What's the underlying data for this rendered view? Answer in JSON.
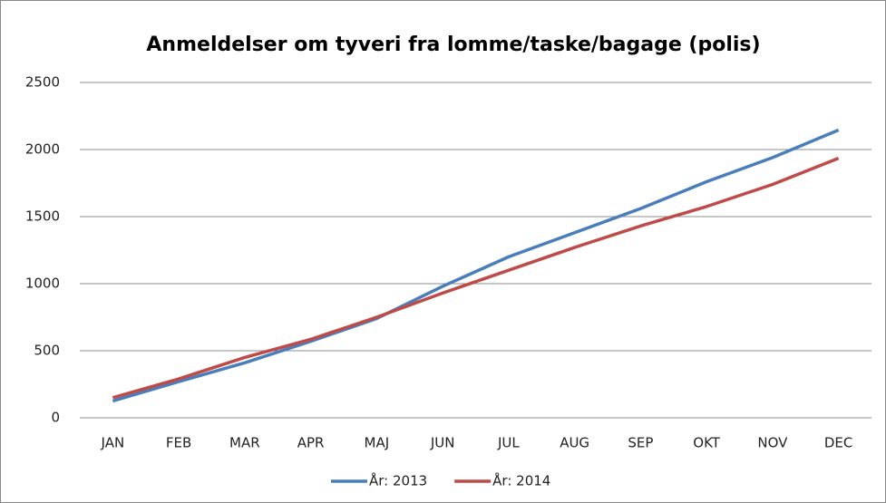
{
  "chart_data": {
    "type": "line",
    "title": "Anmeldelser om tyveri fra lomme/taske/bagage (polis)",
    "categories": [
      "JAN",
      "FEB",
      "MAR",
      "APR",
      "MAJ",
      "JUN",
      "JUL",
      "AUG",
      "SEP",
      "OKT",
      "NOV",
      "DEC"
    ],
    "series": [
      {
        "name": "År: 2013",
        "color": "#4a7ebb",
        "values": [
          125,
          270,
          410,
          570,
          740,
          980,
          1200,
          1380,
          1560,
          1760,
          1940,
          2145
        ]
      },
      {
        "name": "År: 2014",
        "color": "#be4b48",
        "values": [
          150,
          290,
          450,
          585,
          750,
          930,
          1100,
          1270,
          1430,
          1575,
          1740,
          1935
        ]
      }
    ],
    "ylim": [
      0,
      2500
    ],
    "yticks": [
      0,
      500,
      1000,
      1500,
      2000,
      2500
    ],
    "grid": true,
    "legend": "bottom"
  }
}
